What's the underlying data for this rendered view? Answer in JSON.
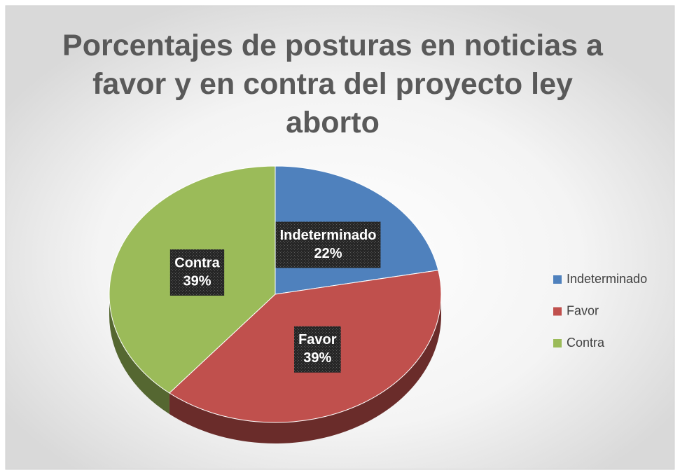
{
  "chart_data": {
    "type": "pie",
    "title": "Porcentajes de posturas en noticias a favor y en contra del proyecto ley aborto",
    "categories": [
      "Indeterminado",
      "Favor",
      "Contra"
    ],
    "values": [
      22,
      39,
      39
    ],
    "value_labels": [
      "22%",
      "39%",
      "39%"
    ],
    "colors": [
      "#4f81bd",
      "#c0504d",
      "#9bbb59"
    ],
    "legend": "right"
  }
}
